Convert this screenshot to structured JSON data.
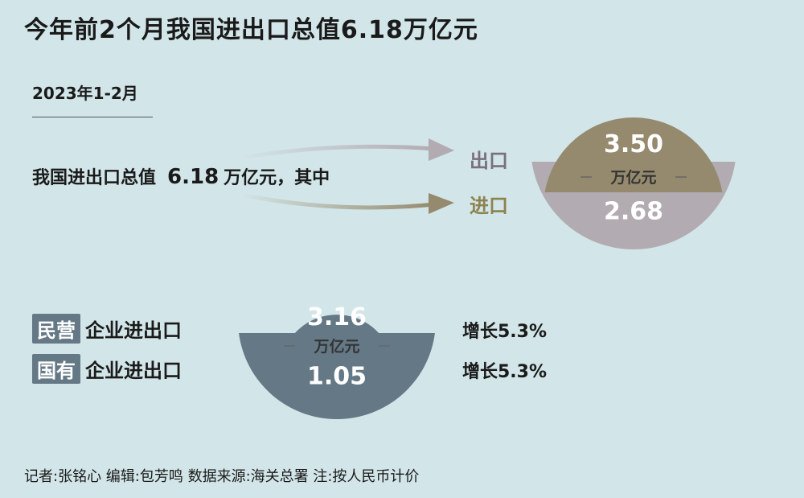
{
  "title": "今年前2个月我国进出口总值6.18万亿元",
  "subtitle": "2023年1-2月",
  "total": {
    "prefix": "我国进出口总值",
    "value": "6.18",
    "suffix": "万亿元，其中"
  },
  "labels": {
    "export": "出口",
    "import": "进口"
  },
  "rows": [
    {
      "badge": "民营",
      "text": "企业进出口",
      "growth": "增长5.3%"
    },
    {
      "badge": "国有",
      "text": "企业进出口",
      "growth": "增长5.3%"
    }
  ],
  "footer": "记者:张铭心  编辑:包芳鸣  数据来源:海关总署  注:按人民币计价",
  "chart_data": [
    {
      "type": "pie",
      "unit": "万亿元",
      "categories": [
        "出口",
        "进口"
      ],
      "values": [
        3.5,
        2.68
      ],
      "value_labels": [
        "3.50",
        "2.68"
      ],
      "colors": [
        "#b2abb2",
        "#958a6e"
      ]
    },
    {
      "type": "pie",
      "unit": "万亿元",
      "categories": [
        "民营企业进出口",
        "国有企业进出口"
      ],
      "values": [
        3.16,
        1.05
      ],
      "value_labels": [
        "3.16",
        "1.05"
      ],
      "colors": [
        "#647886",
        "#647886"
      ]
    }
  ],
  "colors": {
    "background": "#d2e5e8",
    "export_label": "#7a6f7e",
    "import_label": "#8c8350",
    "dash": "#666666"
  }
}
